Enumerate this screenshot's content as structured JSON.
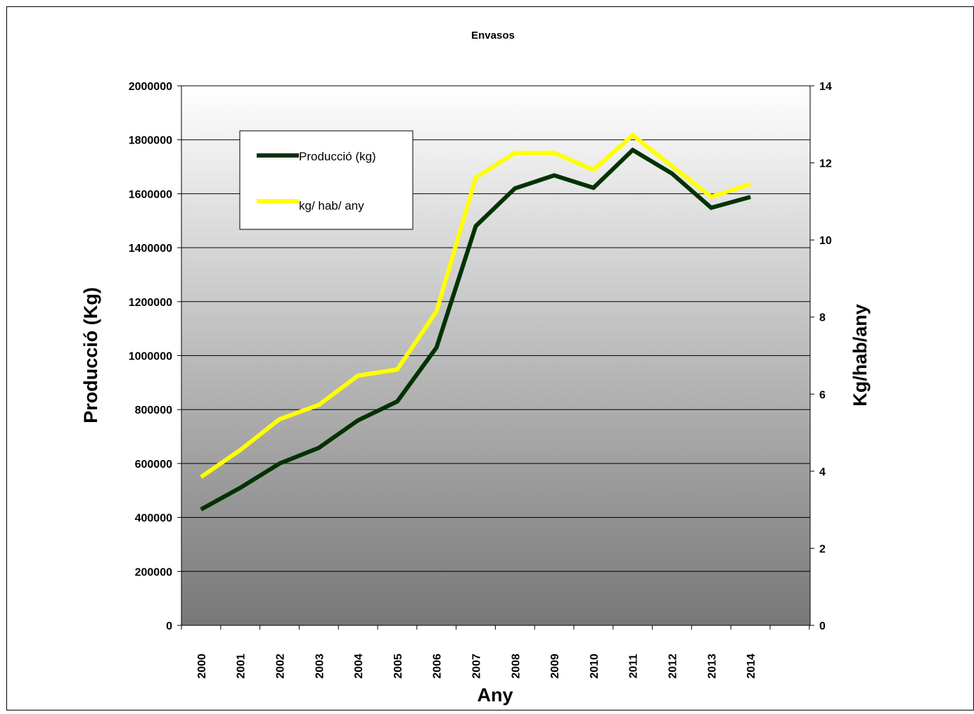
{
  "chart_data": {
    "type": "line",
    "title": "Envasos",
    "xlabel": "Any",
    "ylabel": "Producció (Kg)",
    "y2label": "Kg/hab/any",
    "categories": [
      "2000",
      "2001",
      "2002",
      "2003",
      "2004",
      "2005",
      "2006",
      "2007",
      "2008",
      "2009",
      "2010",
      "2011",
      "2012",
      "2013",
      "2014"
    ],
    "ylim": [
      0,
      2000000
    ],
    "y2lim": [
      0,
      14
    ],
    "yticks": [
      "0",
      "200000",
      "400000",
      "600000",
      "800000",
      "1000000",
      "1200000",
      "1400000",
      "1600000",
      "1800000",
      "2000000"
    ],
    "y2ticks": [
      "0",
      "2",
      "4",
      "6",
      "8",
      "10",
      "12",
      "14"
    ],
    "grid": true,
    "legend_position": "top-left",
    "series": [
      {
        "name": "Producció (kg)",
        "axis": "left",
        "color": "#003300",
        "values": [
          430000,
          510000,
          600000,
          658000,
          760000,
          830000,
          1030000,
          1480000,
          1620000,
          1668000,
          1622000,
          1762000,
          1675000,
          1548000,
          1588000
        ]
      },
      {
        "name": "kg/ hab/ any",
        "axis": "right",
        "color": "#FFFF00",
        "values": [
          3.85,
          4.55,
          5.35,
          5.72,
          6.48,
          6.64,
          8.15,
          11.62,
          12.26,
          12.26,
          11.82,
          12.72,
          11.92,
          11.12,
          11.45
        ]
      }
    ]
  }
}
